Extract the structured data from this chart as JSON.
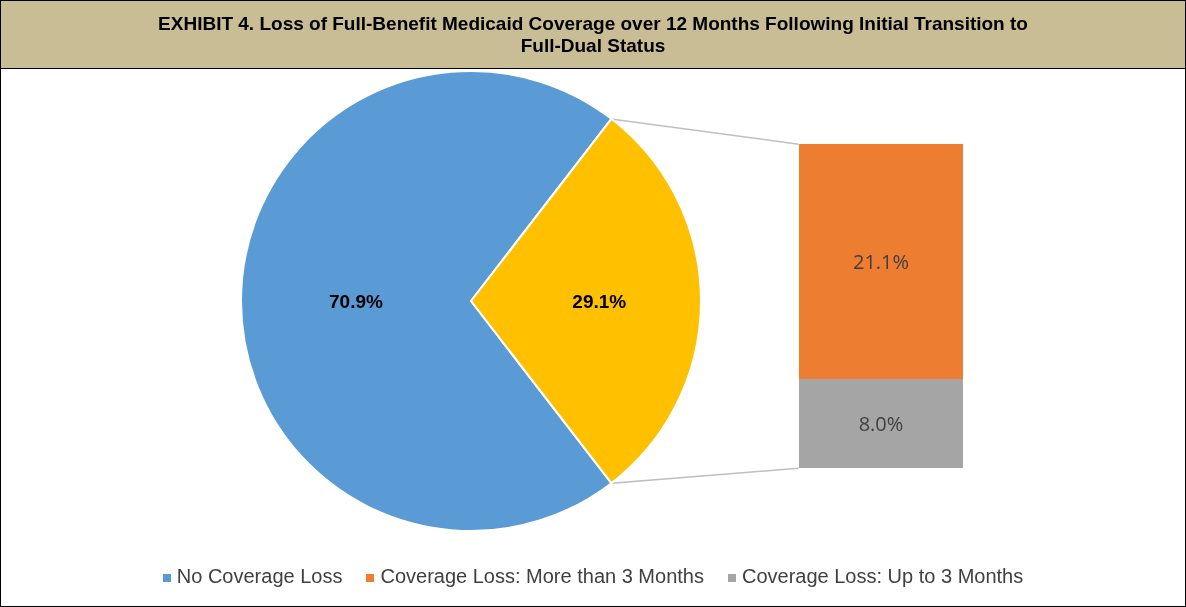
{
  "chart_data": [
    {
      "type": "pie",
      "title": "EXHIBIT 4. Loss of Full-Benefit Medicaid Coverage over 12 Months Following Initial Transition to Full-Dual Status",
      "categories": [
        "No Coverage Loss",
        null
      ],
      "values": [
        70.9,
        29.1
      ],
      "colors": [
        "#5b9bd5",
        "#ffc000"
      ],
      "value_labels": [
        "70.9%",
        "29.1%"
      ],
      "legend": "bottom"
    },
    {
      "type": "bar",
      "stacked": true,
      "categories": [
        null
      ],
      "ylim": [
        0,
        29.1
      ],
      "legend": "bottom",
      "series": [
        {
          "name": "Coverage Loss: Up to 3 Months",
          "color": "#a5a5a5",
          "values": [
            8.0
          ],
          "value_labels": [
            "8.0%"
          ]
        },
        {
          "name": "Coverage Loss: More than 3 Months",
          "color": "#ed7d31",
          "values": [
            21.1
          ],
          "value_labels": [
            "21.1%"
          ]
        }
      ]
    }
  ]
}
